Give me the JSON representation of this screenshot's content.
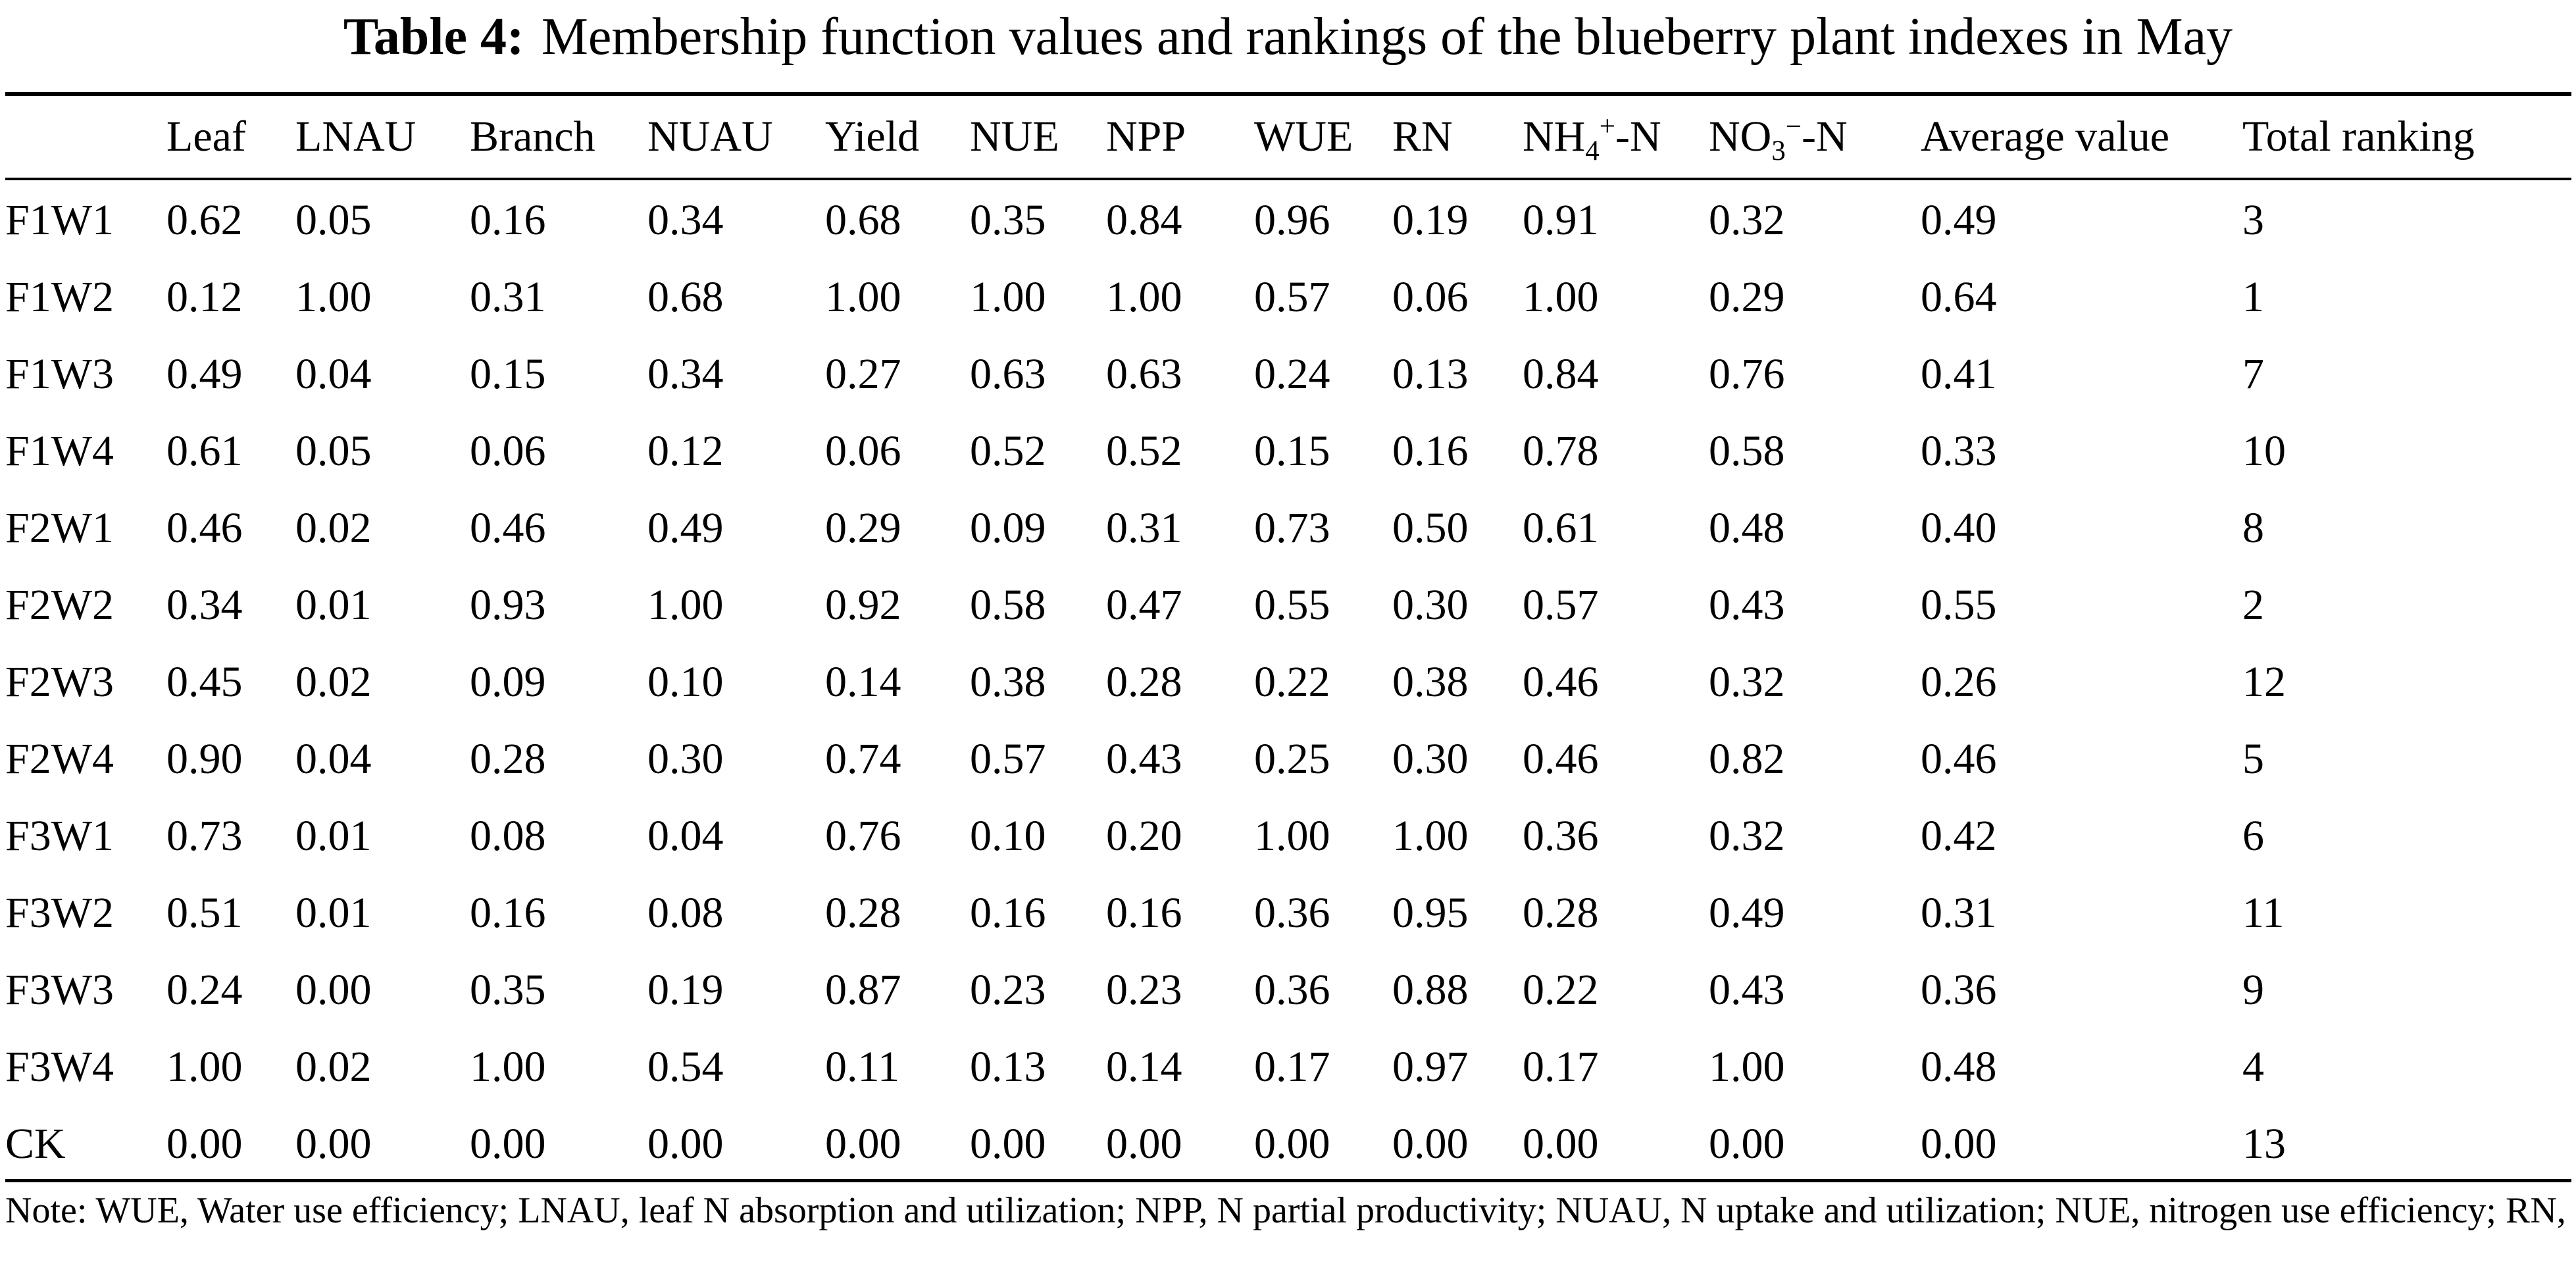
{
  "title": {
    "label": "Table 4:",
    "text": "Membership function values and rankings of the blueberry plant indexes in May"
  },
  "table": {
    "headers": [
      "",
      "Leaf",
      "LNAU",
      "Branch",
      "NUAU",
      "Yield",
      "NUE",
      "NPP",
      "WUE",
      "RN",
      "NH4+-N",
      "NO3−-N",
      "Average value",
      "Total ranking"
    ],
    "rows": [
      [
        "F1W1",
        "0.62",
        "0.05",
        "0.16",
        "0.34",
        "0.68",
        "0.35",
        "0.84",
        "0.96",
        "0.19",
        "0.91",
        "0.32",
        "0.49",
        "3"
      ],
      [
        "F1W2",
        "0.12",
        "1.00",
        "0.31",
        "0.68",
        "1.00",
        "1.00",
        "1.00",
        "0.57",
        "0.06",
        "1.00",
        "0.29",
        "0.64",
        "1"
      ],
      [
        "F1W3",
        "0.49",
        "0.04",
        "0.15",
        "0.34",
        "0.27",
        "0.63",
        "0.63",
        "0.24",
        "0.13",
        "0.84",
        "0.76",
        "0.41",
        "7"
      ],
      [
        "F1W4",
        "0.61",
        "0.05",
        "0.06",
        "0.12",
        "0.06",
        "0.52",
        "0.52",
        "0.15",
        "0.16",
        "0.78",
        "0.58",
        "0.33",
        "10"
      ],
      [
        "F2W1",
        "0.46",
        "0.02",
        "0.46",
        "0.49",
        "0.29",
        "0.09",
        "0.31",
        "0.73",
        "0.50",
        "0.61",
        "0.48",
        "0.40",
        "8"
      ],
      [
        "F2W2",
        "0.34",
        "0.01",
        "0.93",
        "1.00",
        "0.92",
        "0.58",
        "0.47",
        "0.55",
        "0.30",
        "0.57",
        "0.43",
        "0.55",
        "2"
      ],
      [
        "F2W3",
        "0.45",
        "0.02",
        "0.09",
        "0.10",
        "0.14",
        "0.38",
        "0.28",
        "0.22",
        "0.38",
        "0.46",
        "0.32",
        "0.26",
        "12"
      ],
      [
        "F2W4",
        "0.90",
        "0.04",
        "0.28",
        "0.30",
        "0.74",
        "0.57",
        "0.43",
        "0.25",
        "0.30",
        "0.46",
        "0.82",
        "0.46",
        "5"
      ],
      [
        "F3W1",
        "0.73",
        "0.01",
        "0.08",
        "0.04",
        "0.76",
        "0.10",
        "0.20",
        "1.00",
        "1.00",
        "0.36",
        "0.32",
        "0.42",
        "6"
      ],
      [
        "F3W2",
        "0.51",
        "0.01",
        "0.16",
        "0.08",
        "0.28",
        "0.16",
        "0.16",
        "0.36",
        "0.95",
        "0.28",
        "0.49",
        "0.31",
        "11"
      ],
      [
        "F3W3",
        "0.24",
        "0.00",
        "0.35",
        "0.19",
        "0.87",
        "0.23",
        "0.23",
        "0.36",
        "0.88",
        "0.22",
        "0.43",
        "0.36",
        "9"
      ],
      [
        "F3W4",
        "1.00",
        "0.02",
        "1.00",
        "0.54",
        "0.11",
        "0.13",
        "0.14",
        "0.17",
        "0.97",
        "0.17",
        "1.00",
        "0.48",
        "4"
      ],
      [
        "CK",
        "0.00",
        "0.00",
        "0.00",
        "0.00",
        "0.00",
        "0.00",
        "0.00",
        "0.00",
        "0.00",
        "0.00",
        "0.00",
        "0.00",
        "13"
      ]
    ]
  },
  "header_parts": {
    "nh4": {
      "base": "NH",
      "sub": "4",
      "sup": "+",
      "tail": "-N"
    },
    "no3": {
      "base": "NO",
      "sub": "3",
      "sup": "−",
      "tail": "-N"
    }
  },
  "note": "Note: WUE, Water use efficiency; LNAU, leaf N absorption and utilization; NPP, N partial productivity; NUAU, N uptake and utilization; NUE, nitrogen use efficiency; RN, residual N."
}
